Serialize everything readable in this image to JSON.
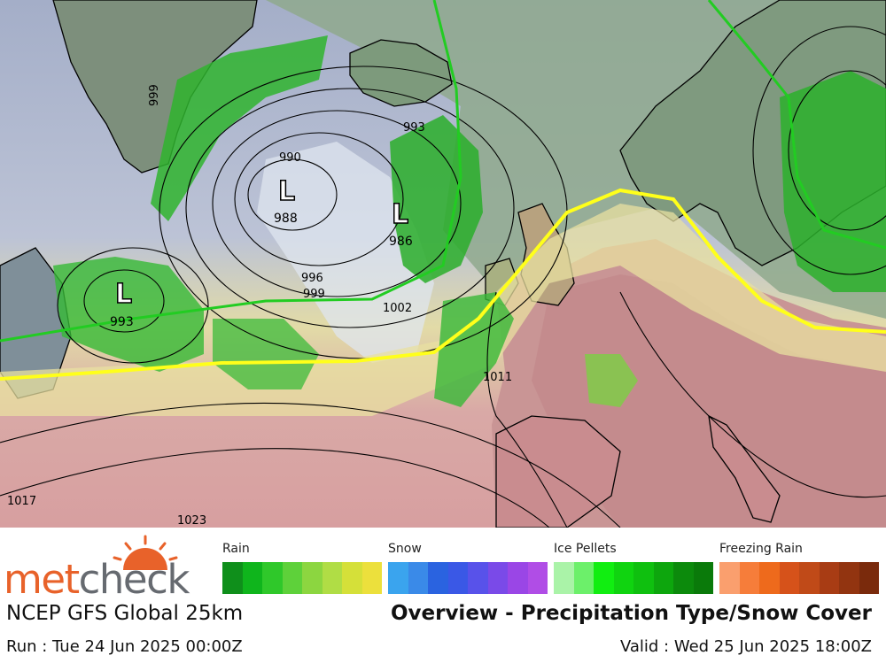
{
  "map": {
    "lows": [
      {
        "id": "low-greenland-sea",
        "symbol": "L",
        "pressure": "988"
      },
      {
        "id": "low-north-atlantic",
        "symbol": "L",
        "pressure": "986"
      },
      {
        "id": "low-labrador",
        "symbol": "L",
        "pressure": "993"
      }
    ],
    "isobar_labels": [
      "999",
      "990",
      "993",
      "996",
      "999",
      "1002",
      "1011",
      "1017",
      "1023"
    ],
    "colors": {
      "ocean_cold": "#9aa6bf",
      "ocean_mid": "#b9c0d6",
      "land_green": "#8ca88a",
      "warm_yellow": "#e8e3a2",
      "warm_tan": "#cbb497",
      "warm_pink": "#d8a4a6",
      "hot_red": "#c98a8c",
      "snow_cover": "#dfe7f0",
      "rain_green": "#29b22a",
      "freezing_line": "#ffff1a",
      "green_line": "#22cc22",
      "coast": "#000000"
    }
  },
  "logo": {
    "part1": "met",
    "part2": "check"
  },
  "legend": [
    {
      "label": "Rain",
      "colors": [
        "#0f8f1b",
        "#0fb51c",
        "#2fc82a",
        "#5ed13a",
        "#8cd640",
        "#b0dd45",
        "#d5e039",
        "#ece03c"
      ]
    },
    {
      "label": "Snow",
      "colors": [
        "#3aa4ee",
        "#3a8ae8",
        "#2a63e0",
        "#3a58e6",
        "#5852ea",
        "#7a4ae8",
        "#9a46e6",
        "#b04de6"
      ]
    },
    {
      "label": "Ice Pellets",
      "colors": [
        "#aaf3a8",
        "#6cf06a",
        "#11ee11",
        "#10d410",
        "#0fc00f",
        "#0da60d",
        "#0c8a0c",
        "#0a7a0a"
      ]
    },
    {
      "label": "Freezing Rain",
      "colors": [
        "#fa9f6e",
        "#f67d3a",
        "#ee6a1c",
        "#d6521a",
        "#c04a18",
        "#a83c14",
        "#923410",
        "#7a2a0c"
      ]
    }
  ],
  "footer": {
    "model": "NCEP GFS Global 25km",
    "title": "Overview - Precipitation Type/Snow Cover",
    "run": "Run : Tue 24 Jun 2025 00:00Z",
    "valid": "Valid : Wed 25 Jun 2025 18:00Z"
  }
}
